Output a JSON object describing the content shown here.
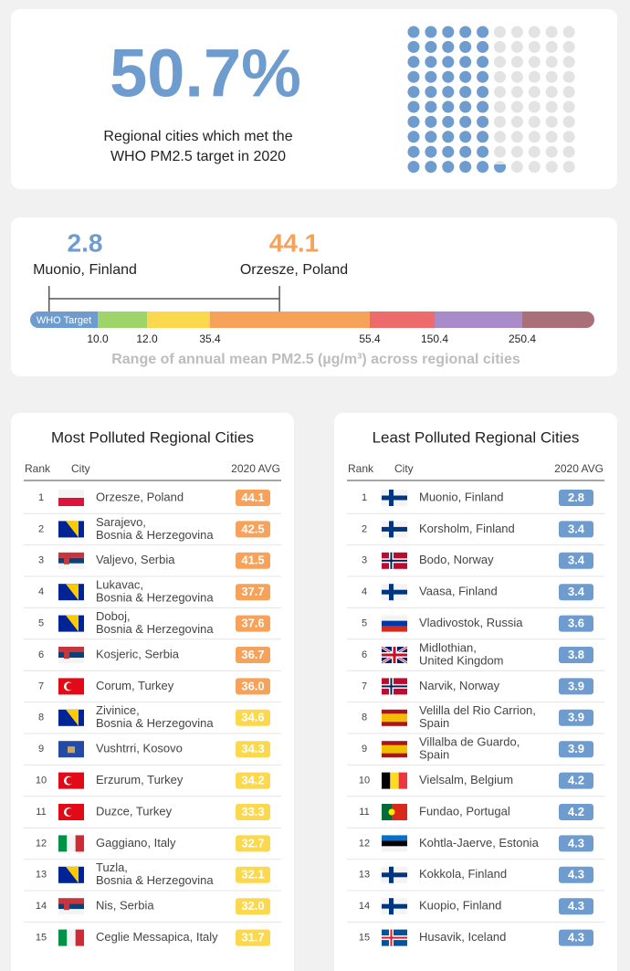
{
  "headline": {
    "value": 50.7,
    "label": "50.7%",
    "caption": [
      "Regional cities which met the",
      "WHO PM2.5 target in 2020"
    ]
  },
  "range": {
    "min": {
      "value": 2.8,
      "city": "Muonio, Finland"
    },
    "max": {
      "value": 44.1,
      "city": "Orzesze, Poland"
    },
    "who_label": "WHO Target",
    "breaks": [
      {
        "value": 10,
        "label": "10.0"
      },
      {
        "value": 12,
        "label": "12.0"
      },
      35.4,
      55.4,
      150.4,
      250.4
    ],
    "colors": [
      "#6f9ccf",
      "#9fd46a",
      "#fcd84e",
      "#f6a25a",
      "#ee6b6b",
      "#a98bc9",
      "#a9707a"
    ],
    "caption": "Range of annual mean PM2.5 (µg/m³) across regional cities"
  },
  "tables": [
    {
      "title": "Most Polluted Regional Cities",
      "columns": [
        "Rank",
        "City",
        "2020 AVG"
      ],
      "rows": [
        {
          "rank": 1,
          "city": [
            "Orzesze, Poland"
          ],
          "avg": "44.1"
        },
        {
          "rank": 2,
          "city": [
            "Sarajevo,",
            "Bosnia & Herzegovina"
          ],
          "avg": "42.5"
        },
        {
          "rank": 3,
          "city": [
            "Valjevo, Serbia"
          ],
          "avg": "41.5"
        },
        {
          "rank": 4,
          "city": [
            "Lukavac,",
            "Bosnia & Herzegovina"
          ],
          "avg": "37.7"
        },
        {
          "rank": 5,
          "city": [
            "Doboj,",
            "Bosnia & Herzegovina"
          ],
          "avg": "37.6"
        },
        {
          "rank": 6,
          "city": [
            "Kosjeric, Serbia"
          ],
          "avg": "36.7"
        },
        {
          "rank": 7,
          "city": [
            "Corum, Turkey"
          ],
          "avg": "36.0"
        },
        {
          "rank": 8,
          "city": [
            "Zivinice,",
            "Bosnia & Herzegovina"
          ],
          "avg": "34.6"
        },
        {
          "rank": 9,
          "city": [
            "Vushtrri, Kosovo"
          ],
          "avg": "34.3"
        },
        {
          "rank": 10,
          "city": [
            "Erzurum, Turkey"
          ],
          "avg": "34.2"
        },
        {
          "rank": 11,
          "city": [
            "Duzce, Turkey"
          ],
          "avg": "33.3"
        },
        {
          "rank": 12,
          "city": [
            "Gaggiano, Italy"
          ],
          "avg": "32.7"
        },
        {
          "rank": 13,
          "city": [
            "Tuzla,",
            "Bosnia & Herzegovina"
          ],
          "avg": "32.1"
        },
        {
          "rank": 14,
          "city": [
            "Nis, Serbia"
          ],
          "avg": "32.0"
        },
        {
          "rank": 15,
          "city": [
            "Ceglie Messapica, Italy"
          ],
          "avg": "31.7"
        }
      ]
    },
    {
      "title": "Least Polluted Regional Cities",
      "columns": [
        "Rank",
        "City",
        "2020 AVG"
      ],
      "rows": [
        {
          "rank": 1,
          "city": [
            "Muonio, Finland"
          ],
          "avg": "2.8"
        },
        {
          "rank": 2,
          "city": [
            "Korsholm, Finland"
          ],
          "avg": "3.4"
        },
        {
          "rank": 3,
          "city": [
            "Bodo, Norway"
          ],
          "avg": "3.4"
        },
        {
          "rank": 4,
          "city": [
            "Vaasa, Finland"
          ],
          "avg": "3.4"
        },
        {
          "rank": 5,
          "city": [
            "Vladivostok, Russia"
          ],
          "avg": "3.6"
        },
        {
          "rank": 6,
          "city": [
            "Midlothian,",
            "United Kingdom"
          ],
          "avg": "3.8"
        },
        {
          "rank": 7,
          "city": [
            "Narvik, Norway"
          ],
          "avg": "3.9"
        },
        {
          "rank": 8,
          "city": [
            "Velilla del Rio Carrion,",
            "Spain"
          ],
          "avg": "3.9"
        },
        {
          "rank": 9,
          "city": [
            "Villalba de Guardo,",
            "Spain"
          ],
          "avg": "3.9"
        },
        {
          "rank": 10,
          "city": [
            "Vielsalm, Belgium"
          ],
          "avg": "4.2"
        },
        {
          "rank": 11,
          "city": [
            "Fundao, Portugal"
          ],
          "avg": "4.2"
        },
        {
          "rank": 12,
          "city": [
            "Kohtla-Jaerve, Estonia"
          ],
          "avg": "4.3"
        },
        {
          "rank": 13,
          "city": [
            "Kokkola, Finland"
          ],
          "avg": "4.3"
        },
        {
          "rank": 14,
          "city": [
            "Kuopio, Finland"
          ],
          "avg": "4.3"
        },
        {
          "rank": 15,
          "city": [
            "Husavik, Iceland"
          ],
          "avg": "4.3"
        }
      ]
    }
  ]
}
